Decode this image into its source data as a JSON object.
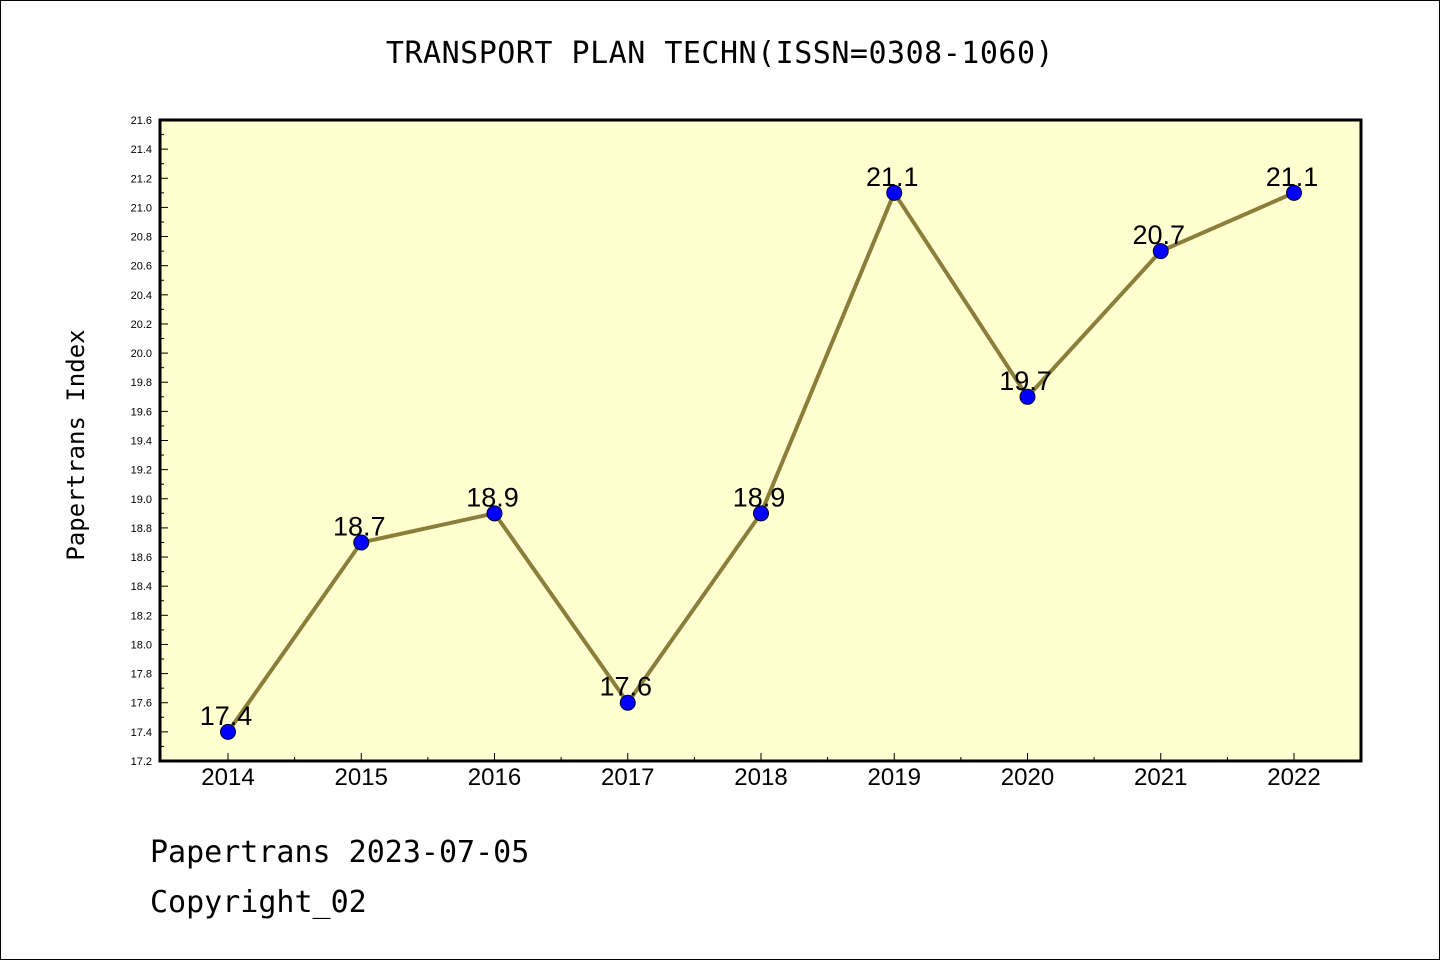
{
  "chart_data": {
    "type": "line",
    "title": "TRANSPORT PLAN TECHN(ISSN=0308-1060)",
    "xlabel": "",
    "ylabel": "Papertrans Index",
    "x": [
      "2014",
      "2015",
      "2016",
      "2017",
      "2018",
      "2019",
      "2020",
      "2021",
      "2022"
    ],
    "series": [
      {
        "values": [
          17.4,
          18.7,
          18.9,
          17.6,
          18.9,
          21.1,
          19.7,
          20.7,
          21.1
        ],
        "data_labels": [
          "17.4",
          "18.7",
          "18.9",
          "17.6",
          "18.9",
          "21.1",
          "19.7",
          "20.7",
          "21.1"
        ]
      }
    ],
    "ylim": [
      17.2,
      21.6
    ],
    "yticks": [
      "17.2",
      "17.4",
      "17.6",
      "17.8",
      "18.0",
      "18.2",
      "18.4",
      "18.6",
      "18.8",
      "19.0",
      "19.2",
      "19.4",
      "19.6",
      "19.8",
      "20.0",
      "20.2",
      "20.4",
      "20.6",
      "20.8",
      "21.0",
      "21.2",
      "21.4",
      "21.6"
    ],
    "grid": false,
    "colors": {
      "plot_background": "#ffffd0",
      "line": "#8b7d3a",
      "marker": "#0000ff"
    }
  },
  "footer": {
    "line1": "Papertrans 2023-07-05",
    "line2": "Copyright_02"
  }
}
